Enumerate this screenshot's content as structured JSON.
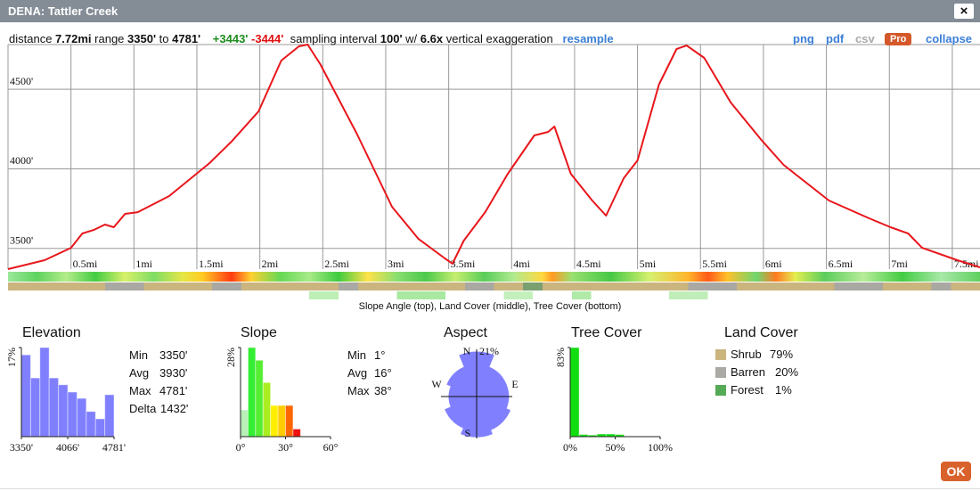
{
  "header": {
    "title": "DENA: Tattler Creek",
    "close": "×"
  },
  "info": {
    "distance_label": "distance",
    "distance": "7.72mi",
    "range_label": "range",
    "range_min": "3350'",
    "to": "to",
    "range_max": "4781'",
    "gain": "+3443'",
    "loss": "-3444'",
    "sampling_label": "sampling interval",
    "interval": "100'",
    "w": "w/",
    "exaggeration": "6.6x",
    "exaggeration_label": "vertical exaggeration",
    "resample": "resample"
  },
  "links": [
    "png",
    "pdf",
    "csv",
    "Pro",
    "collapse"
  ],
  "chart_data": [
    {
      "type": "line",
      "color": "#e8161b",
      "x": [
        0,
        0.29,
        0.5,
        0.59,
        0.68,
        0.77,
        0.84,
        0.93,
        1.03,
        1.28,
        1.6,
        1.78,
        1.99,
        2.17,
        2.31,
        2.38,
        2.48,
        2.77,
        3.05,
        3.26,
        3.47,
        3.53,
        3.62,
        3.79,
        3.97,
        4.18,
        4.29,
        4.34,
        4.47,
        4.64,
        4.75,
        4.89,
        5.0,
        5.17,
        5.31,
        5.39,
        5.53,
        5.74,
        5.99,
        6.16,
        6.52,
        6.84,
        7.01,
        7.15,
        7.26,
        7.54,
        7.72
      ],
      "values": [
        3370,
        3426,
        3504,
        3594,
        3616,
        3650,
        3633,
        3717,
        3728,
        3829,
        4036,
        4176,
        4361,
        4680,
        4770,
        4781,
        4658,
        4221,
        3762,
        3560,
        3437,
        3404,
        3549,
        3728,
        3969,
        4210,
        4232,
        4266,
        3969,
        3801,
        3706,
        3941,
        4053,
        4529,
        4753,
        4775,
        4697,
        4417,
        4176,
        4025,
        3801,
        3689,
        3633,
        3594,
        3504,
        3426,
        3381
      ],
      "xlim": [
        0,
        7.72
      ],
      "ylim": [
        3370,
        4781
      ],
      "xticks": [
        {
          "value": 0.5,
          "label": "0.5mi"
        },
        {
          "value": 1,
          "label": "1mi"
        },
        {
          "value": 1.5,
          "label": "1.5mi"
        },
        {
          "value": 2,
          "label": "2mi"
        },
        {
          "value": 2.5,
          "label": "2.5mi"
        },
        {
          "value": 3,
          "label": "3mi"
        },
        {
          "value": 3.5,
          "label": "3.5mi"
        },
        {
          "value": 4,
          "label": "4mi"
        },
        {
          "value": 4.5,
          "label": "4.5mi"
        },
        {
          "value": 5,
          "label": "5mi"
        },
        {
          "value": 5.5,
          "label": "5.5mi"
        },
        {
          "value": 6,
          "label": "6mi"
        },
        {
          "value": 6.5,
          "label": "6.5mi"
        },
        {
          "value": 7,
          "label": "7mi"
        },
        {
          "value": 7.5,
          "label": "7.5mi"
        }
      ],
      "yticks": [
        {
          "value": 3500,
          "label": "3500'"
        },
        {
          "value": 4000,
          "label": "4000'"
        },
        {
          "value": 4500,
          "label": "4500'"
        }
      ],
      "grid": true
    },
    {
      "type": "histogram",
      "title": "Elevation",
      "color": "#8080ff",
      "bins": [
        3350,
        3493,
        3636,
        3779,
        3922,
        4066,
        4209,
        4352,
        4495,
        4638,
        4781
      ],
      "values": [
        15.6,
        11.2,
        17,
        11.2,
        9.9,
        8.5,
        7.3,
        4.8,
        3.4,
        8
      ],
      "xlim": [
        3350,
        4781
      ],
      "ylim": [
        0,
        17
      ],
      "xticks": [
        {
          "value": 3350,
          "label": "3350'"
        },
        {
          "value": 4066,
          "label": "4066'"
        },
        {
          "value": 4781,
          "label": "4781'"
        }
      ],
      "yticks": [
        {
          "value": 17,
          "label": "17%"
        }
      ]
    },
    {
      "type": "histogram",
      "title": "Slope",
      "colors": [
        "#b8f0b8",
        "#33ee33",
        "#55ee33",
        "#aaee22",
        "#ffee00",
        "#ffcc00",
        "#ff6600",
        "#ee1111"
      ],
      "bins": [
        0,
        5,
        10,
        15,
        20,
        25,
        30,
        35,
        40
      ],
      "values": [
        8.4,
        28,
        24,
        17,
        9.8,
        9.8,
        9.8,
        2.4
      ],
      "xlim": [
        0,
        60
      ],
      "ylim": [
        0,
        28
      ],
      "xticks": [
        {
          "value": 0,
          "label": "0°"
        },
        {
          "value": 30,
          "label": "30°"
        },
        {
          "value": 60,
          "label": "60°"
        }
      ],
      "yticks": [
        {
          "value": 28,
          "label": "28%"
        }
      ]
    },
    {
      "type": "rose",
      "title": "Aspect",
      "color": "#8080ff",
      "categories": [
        "N",
        null,
        "E",
        null,
        "S",
        null,
        "W",
        null
      ],
      "values": [
        21,
        15,
        15,
        17,
        19,
        16,
        13,
        15
      ],
      "rlim": [
        0,
        21
      ],
      "rticks": [
        {
          "value": 21,
          "label": "21%"
        }
      ]
    },
    {
      "type": "histogram",
      "title": "Tree Cover",
      "color": "#11dd11",
      "bins": [
        0,
        10,
        20,
        30,
        40,
        50,
        60,
        70,
        80,
        90,
        100
      ],
      "values": [
        83,
        2,
        1.5,
        2.5,
        2.5,
        2,
        0,
        0,
        0,
        0
      ],
      "xlim": [
        0,
        100
      ],
      "ylim": [
        0,
        83
      ],
      "xticks": [
        {
          "value": 0,
          "label": "0%"
        },
        {
          "value": 50,
          "label": "50%"
        },
        {
          "value": 100,
          "label": "100%"
        }
      ],
      "yticks": [
        {
          "value": 83,
          "label": "83%"
        }
      ]
    }
  ],
  "strip_caption": "Slope Angle (top), Land Cover (middle), Tree Cover (bottom)",
  "elevation_stats": [
    [
      "Min",
      "3350'"
    ],
    [
      "Avg",
      "3930'"
    ],
    [
      "Max",
      "4781'"
    ],
    [
      "Delta",
      "1432'"
    ]
  ],
  "slope_stats": [
    [
      "Min",
      "1°"
    ],
    [
      "Avg",
      "16°"
    ],
    [
      "Max",
      "38°"
    ]
  ],
  "land_cover": {
    "title": "Land Cover",
    "items": [
      {
        "name": "Shrub",
        "value": "79%",
        "color": "#cbb57f"
      },
      {
        "name": "Barren",
        "value": "20%",
        "color": "#aaa9a3"
      },
      {
        "name": "Forest",
        "value": "1%",
        "color": "#55aa55"
      }
    ]
  },
  "ok": "OK"
}
